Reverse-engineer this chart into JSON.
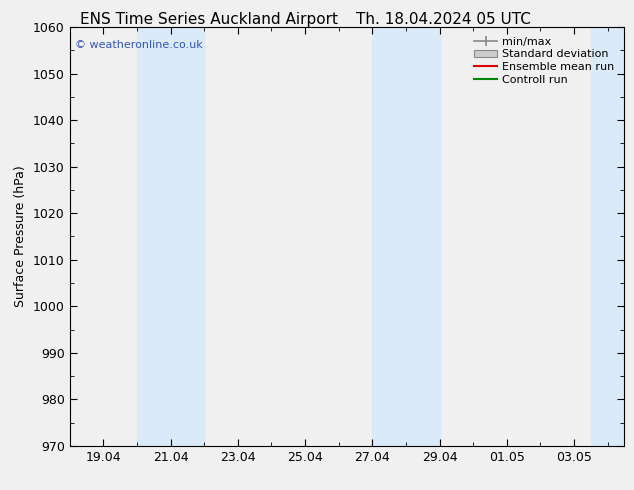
{
  "title": "ENS Time Series Auckland Airport",
  "title2": "Th. 18.04.2024 05 UTC",
  "ylabel": "Surface Pressure (hPa)",
  "ylim": [
    970,
    1060
  ],
  "yticks": [
    970,
    980,
    990,
    1000,
    1010,
    1020,
    1030,
    1040,
    1050,
    1060
  ],
  "xtick_labels": [
    "19.04",
    "21.04",
    "23.04",
    "25.04",
    "27.04",
    "29.04",
    "01.05",
    "03.05"
  ],
  "xtick_positions": [
    1,
    3,
    5,
    7,
    9,
    11,
    13,
    15
  ],
  "x_min": 0,
  "x_max": 16.5,
  "shade_bands": [
    {
      "x_start": 2.0,
      "x_end": 4.0
    },
    {
      "x_start": 9.0,
      "x_end": 11.0
    },
    {
      "x_start": 15.5,
      "x_end": 16.5
    }
  ],
  "shade_color": "#daeaf8",
  "watermark": "© weatheronline.co.uk",
  "watermark_color": "#3355bb",
  "legend_entries": [
    "min/max",
    "Standard deviation",
    "Ensemble mean run",
    "Controll run"
  ],
  "legend_line_color": "#888888",
  "legend_std_color": "#cccccc",
  "legend_ens_color": "#dd0000",
  "legend_ctrl_color": "#008800",
  "plot_bg_color": "#f0f0f0",
  "fig_bg_color": "#f0f0f0",
  "title_fontsize": 11,
  "axis_fontsize": 9,
  "tick_fontsize": 9,
  "legend_fontsize": 8
}
